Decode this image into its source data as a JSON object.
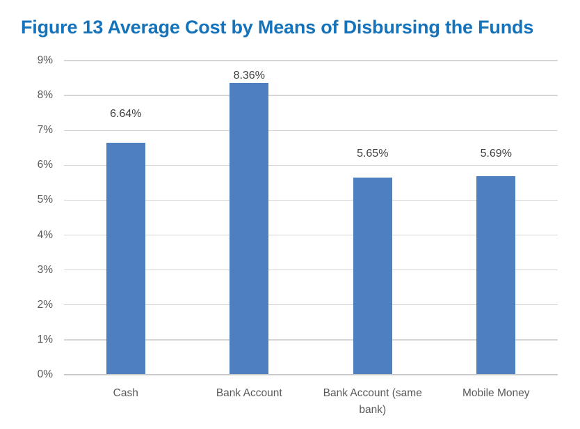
{
  "title": "Figure 13 Average Cost by Means of Disbursing the Funds",
  "chart_data": {
    "type": "bar",
    "title": "Figure 13 Average Cost by Means of Disbursing the Funds",
    "categories": [
      "Cash",
      "Bank Account",
      "Bank Account (same bank)",
      "Mobile Money"
    ],
    "values": [
      6.64,
      8.36,
      5.65,
      5.69
    ],
    "data_labels": [
      "6.64%",
      "8.36%",
      "5.65%",
      "5.69%"
    ],
    "xlabel": "",
    "ylabel": "",
    "ylim": [
      0,
      9
    ],
    "y_tick_step": 1,
    "y_tick_labels": [
      "0%",
      "1%",
      "2%",
      "3%",
      "4%",
      "5%",
      "6%",
      "7%",
      "8%",
      "9%"
    ],
    "grid": true,
    "legend": false
  },
  "colors": {
    "title_text": "#1473BB",
    "bar_fill": "#4E7FBE",
    "gridline": "#D6D6D6",
    "axis_line": "#C9C9C9",
    "axis_text": "#595959",
    "data_label_text": "#404040",
    "background": "#FFFFFF"
  }
}
